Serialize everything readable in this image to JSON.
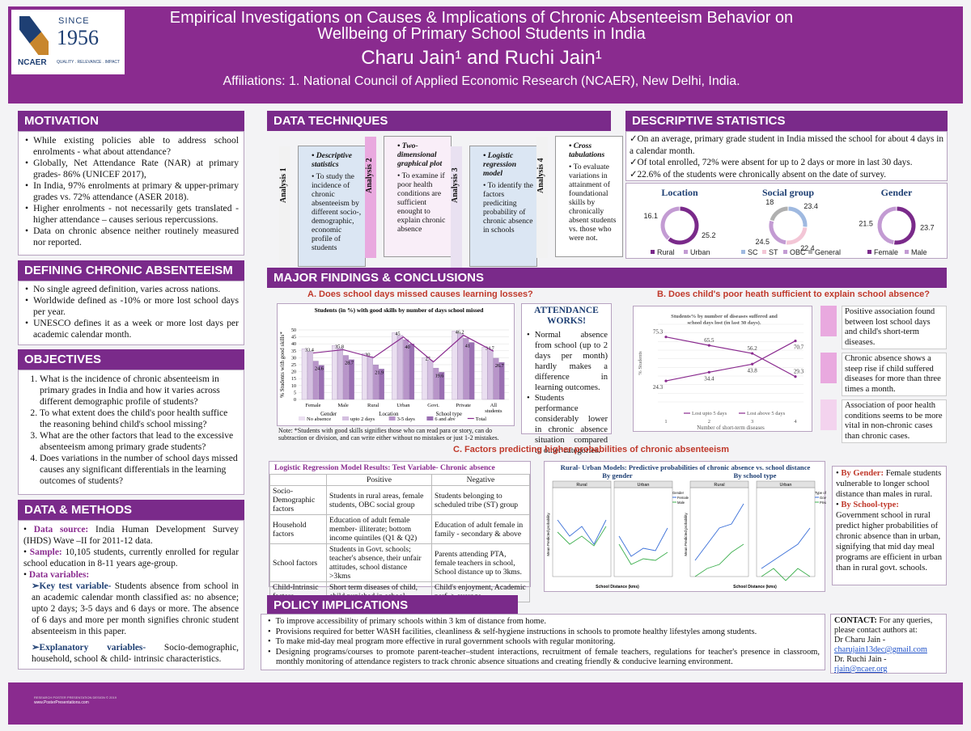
{
  "header": {
    "title": "Empirical Investigations on Causes & Implications of Chronic Absenteeism Behavior on Wellbeing of Primary School Students in India",
    "authors": "Charu Jain¹ and Ruchi Jain¹",
    "affiliations": "Affiliations: 1. National Council of Applied Economic Research (NCAER), New Delhi, India.",
    "logo_name": "NCAER",
    "logo_since": "SINCE",
    "logo_year": "1956",
    "logo_motto": "QUALITY . RELEVANCE . IMPACT"
  },
  "motivation": {
    "heading": "MOTIVATION",
    "items": [
      "While existing policies able to address school enrolments - what about attendance?",
      "Globally, Net Attendance Rate (NAR) at primary grades- 86% (UNICEF 2017),",
      "In India, 97% enrolments at primary & upper-primary grades vs. 72% attendance (ASER 2018).",
      "Higher enrolments - not necessarily gets translated - higher attendance – causes serious repercussions.",
      "Data on chronic absence neither routinely measured nor reported."
    ]
  },
  "defining": {
    "heading": "DEFINING CHRONIC ABSENTEEISM",
    "items": [
      "No single agreed definition, varies across nations.",
      "Worldwide defined as -10% or more lost school days per year.",
      "UNESCO defines it as a week or more lost days per academic calendar month."
    ]
  },
  "objectives": {
    "heading": "OBJECTIVES",
    "items": [
      "What is the incidence of chronic absenteeism in primary grades in India and how it varies across different demographic profile of students?",
      "To what extent does the child's poor health suffice the reasoning behind child's school missing?",
      "What are the other factors that lead to the excessive absenteeism among primary grade students?",
      "Does variations in the number of school days missed causes any significant differentials in the learning outcomes of students?"
    ]
  },
  "data_methods": {
    "heading": "DATA & METHODS",
    "source_label": "Data source:",
    "source_text": "India Human Development Survey (IHDS) Wave –II for 2011-12 data.",
    "sample_label": "Sample:",
    "sample_text": "10,105 students, currently enrolled for regular school education in 8-11 years age-group.",
    "variables_label": "Data variables:",
    "key_label": "Key test variable-",
    "key_text": "Students absence from school in an academic calendar month classified as: no absence; upto 2 days; 3-5 days and 6 days or more. The absence of 6 days and more per month signifies chronic student absenteeism in this paper.",
    "expl_label": "Explanatory variables-",
    "expl_text": "Socio-demographic, household, school & child- intrinsic characteristics."
  },
  "techniques": {
    "heading": "DATA TECHNIQUES",
    "cards": [
      {
        "label": "Analysis 1",
        "title": "Descriptive statistics",
        "text": "To study the incidence of chronic absenteeism by different socio-, demographic, economic profile of students",
        "color": "#dbe6f3",
        "side": "#f2f2f2"
      },
      {
        "label": "Analysis 2",
        "title": "Two-dimensional graphical plot",
        "text": "To examine if poor health conditions are sufficient enought to explain chronic absence",
        "color": "#f9eef8",
        "side": "#e9a9df"
      },
      {
        "label": "Analysis 3",
        "title": "Logistic regression model",
        "text": "To identify the factors prediciting probability of chronic absence in schools",
        "color": "#dbe6f3",
        "side": "#e9e1f1"
      },
      {
        "label": "Analysis 4",
        "title": "Cross tabulations",
        "text": "To evaluate variations in attainment of foundational skills by chronically absent students vs. those who were not.",
        "color": "#ffffff",
        "side": "#f2f2f2"
      }
    ]
  },
  "descriptive": {
    "heading": "DESCRIPTIVE STATISTICS",
    "items": [
      "On an average, primary grade student in India missed the school for about 4 days in a calendar month.",
      "Of total enrolled, 72% were absent for up to 2 days or more in last 30 days.",
      "22.6% of the students were chronically absent on the date of survey."
    ],
    "donuts": [
      {
        "title": "Location",
        "labels": [
          "Rural",
          "Urban"
        ],
        "values": [
          25.2,
          16.1
        ],
        "colors": [
          "#7a2a8a",
          "#c39bd3"
        ]
      },
      {
        "title": "Social group",
        "labels": [
          "SC",
          "ST",
          "OBC",
          "General"
        ],
        "values": [
          23.4,
          22.4,
          24.5,
          18.0
        ],
        "colors": [
          "#9fb9e0",
          "#f3c6d6",
          "#c39bd3",
          "#b0b0b0"
        ]
      },
      {
        "title": "Gender",
        "labels": [
          "Female",
          "Male"
        ],
        "values": [
          23.7,
          21.5
        ],
        "colors": [
          "#7a2a8a",
          "#c39bd3"
        ]
      }
    ]
  },
  "findings": {
    "heading": "MAJOR FINDINGS & CONCLUSIONS",
    "a_title": "A. Does school days missed causes learning losses?",
    "b_title": "B. Does child's poor heath sufficient to explain school absence?",
    "c_title": "C. Factors predicting higher probabilities of chronic absenteeism",
    "note": "Note: *Students with good skills signifies those who can read para or story, can do subtraction or division, and can write either without no mistakes or just 1-2 mistakes.",
    "attendance_title": "ATTENDANCE WORKS!",
    "attendance_items": [
      "Normal absence from school (up to 2 days per month) hardly makes a difference in learning outcomes.",
      "Students performance considerably lower in chronic absence situation compared to other categories."
    ],
    "b_notes": [
      "Positive association found between lost school days and child's short-term diseases.",
      "Chronic absence shows a steep rise if child suffered diseases for more than three times a month.",
      "Association of poor health conditions seems to be more vital in non-chronic cases than chronic cases."
    ],
    "b_note_colors": [
      "#e9a9df",
      "#e9a9df",
      "#f3d3ee"
    ],
    "c_right_gender_label": "By Gender:",
    "c_right_gender_text": "Female students vulnerable to longer school distance than males in rural.",
    "c_right_school_label": "By School-type:",
    "c_right_school_text": "Government school in rural predict higher probabilities of chronic absence than in urban, signifying that mid day meal programs are efficient in urban than in rural govt. schools.",
    "lr_title": "Logistic Regression Model Results: Test Variable- Chronic absence",
    "lr_head": [
      "",
      "Positive",
      "Negative"
    ],
    "lr_rows": [
      [
        "Socio-Demographic factors",
        "Students in rural areas, female students, OBC social group",
        "Students belonging to scheduled tribe (ST) group"
      ],
      [
        "Household factors",
        "Education of adult female member- illiterate; bottom income quintiles (Q1 & Q2)",
        "Education of adult female in family - secondary & above"
      ],
      [
        "School factors",
        "Students in Govt. schools; teacher's absence, their unfair attitudes, school distance >3kms",
        "Parents attending PTA, female teachers in school, School distance up to 3kms."
      ],
      [
        "Child-Intrinsic factors",
        "Short term diseases of child, child punished in school",
        "Child's enjoyment, Academic perf. > average"
      ]
    ],
    "prob_title": "Rural- Urban Models: Predictive probabilities of chronic absence vs. school distance",
    "prob_by_gender": "By gender",
    "prob_by_school": "By school type",
    "panel_rural": "Rural",
    "panel_urban": "Urban",
    "prob_ylabel": "Mean Predicted probability",
    "prob_xlabel": "School Distance (kms)",
    "legend_gender": [
      "Gender",
      "Female",
      "Male"
    ],
    "legend_school": [
      "Type of school",
      "Govt",
      "Private"
    ]
  },
  "policy": {
    "heading": "POLICY IMPLICATIONS",
    "items": [
      "To improve accessibility of primary schools within 3 km of distance from home.",
      "Provisions required for better WASH facilities, cleanliness & self-hygiene instructions in schools to promote healthy lifestyles among students.",
      "To make mid-day meal program more effective in rural government schools with regular monitoring.",
      "Designing programs/courses to promote parent-teacher–student interactions, recruitment of female teachers, regulations for teacher's presence in classroom, monthly monitoring of attendance registers to track chronic absence situations and creating friendly & conducive learning environment."
    ]
  },
  "contact": {
    "heading": "CONTACT:",
    "text": "For any queries, please contact authors at:",
    "name1": "Dr Charu Jain -",
    "email1": "charujain13dec@gmail.com",
    "name2": "Dr. Ruchi Jain -",
    "email2": "rjain@ncaer.org"
  },
  "footer": {
    "line1": "RESEARCH POSTER PRESENTATION DESIGN © 2019",
    "line2": "www.PosterPresentations.com"
  },
  "chart_data": [
    {
      "type": "bar",
      "title": "Students (in %) with good skills by number of days school missed",
      "ylabel": "% Students with good skills*",
      "ylim": [
        0,
        50
      ],
      "yticks": [
        0,
        5,
        10,
        15,
        20,
        25,
        30,
        35,
        40,
        45,
        50
      ],
      "categories": [
        "Female",
        "Male",
        "Rural",
        "Urban",
        "Govt.",
        "Private",
        "All students"
      ],
      "groups": [
        "Gender",
        "Location",
        "School type"
      ],
      "series": [
        {
          "name": "No absence",
          "values": [
            null,
            null,
            null,
            null,
            null,
            null,
            null
          ],
          "color": "#eadff0"
        },
        {
          "name": "upto 2 days",
          "values": [
            null,
            null,
            null,
            null,
            null,
            null,
            null
          ],
          "color": "#d4bfe0"
        },
        {
          "name": "3-5 days",
          "values": [
            null,
            null,
            null,
            null,
            null,
            null,
            null
          ],
          "color": "#b895c9"
        },
        {
          "name": "6 and abv",
          "values": [
            null,
            null,
            null,
            null,
            null,
            null,
            null
          ],
          "color": "#9a6fb2"
        },
        {
          "name": "Total",
          "values": [
            33.4,
            35.8,
            30.0,
            45.0,
            27.0,
            46.2,
            34.7
          ],
          "color": "#8a2b8f"
        }
      ],
      "other_labels": {
        "Female": 24.6,
        "Male": 28.7,
        "Rural": 21.9,
        "Urban": 40.0,
        "Govt.": 19.6,
        "Private": 41.0,
        "All students": 26.7
      },
      "legend": "bottom"
    },
    {
      "type": "line",
      "title": "Students% by number of diseases suffered and school days lost (in last 30 days).",
      "ylabel": "% Students",
      "xlabel": "Number of short-term diseases",
      "x": [
        1,
        2,
        3,
        4
      ],
      "series": [
        {
          "name": "Lost upto 5 days",
          "values": [
            24.3,
            34.4,
            43.8,
            70.7
          ],
          "color": "#8a2b8f"
        },
        {
          "name": "Lost above 5 days",
          "values": [
            75.3,
            65.5,
            56.2,
            29.3
          ],
          "color": "#8a2b8f"
        }
      ],
      "ylim": [
        0,
        90
      ],
      "legend": "bottom"
    }
  ]
}
